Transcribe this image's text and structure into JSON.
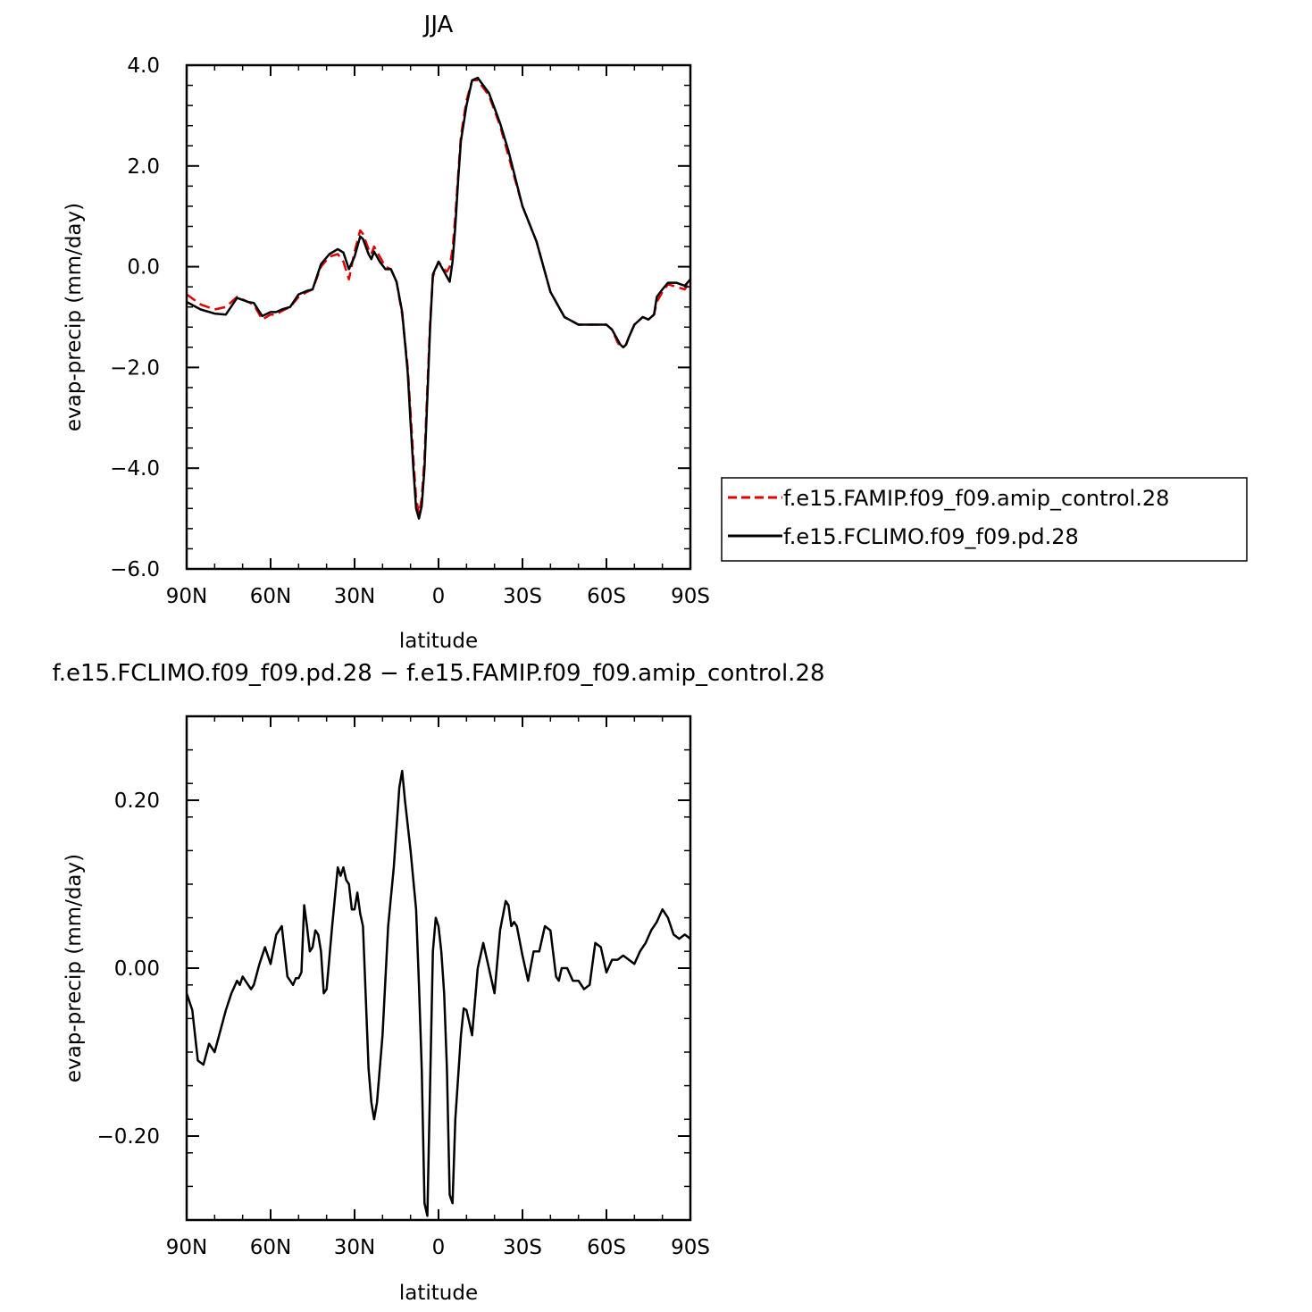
{
  "chart_data": [
    {
      "type": "line",
      "title": "JJA",
      "xlabel": "latitude",
      "ylabel": "evap-precip (mm/day)",
      "xlim": [
        -90,
        90
      ],
      "ylim": [
        -6,
        4
      ],
      "x_tick_values": [
        -90,
        -60,
        -30,
        0,
        30,
        60,
        90
      ],
      "x_tick_labels": [
        "90N",
        "60N",
        "30N",
        "0",
        "30S",
        "60S",
        "90S"
      ],
      "y_tick_values": [
        -6,
        -4,
        -2,
        0,
        2,
        4
      ],
      "y_tick_labels": [
        "−6.0",
        "−4.0",
        "−2.0",
        "0.0",
        "2.0",
        "4.0"
      ],
      "legend_placement": "right, outside plot",
      "series": [
        {
          "name": "f.e15.FAMIP.f09_f09.amip_control.28",
          "color": "#e00000",
          "dash": "dashed",
          "x": [
            -90,
            -85,
            -80,
            -76,
            -72,
            -68,
            -66,
            -63,
            -60,
            -58,
            -56,
            -53,
            -50,
            -47,
            -45,
            -42,
            -39,
            -36,
            -34,
            -32,
            -30,
            -28,
            -27,
            -26,
            -25,
            -24,
            -23,
            -21,
            -19,
            -17,
            -15,
            -13,
            -11,
            -10,
            -9,
            -8,
            -7,
            -6,
            -5,
            -4,
            -3,
            -2,
            0,
            2,
            3,
            4,
            5,
            6,
            7,
            8,
            10,
            12,
            14,
            16,
            18,
            20,
            22,
            25,
            30,
            35,
            40,
            45,
            50,
            55,
            60,
            62,
            64,
            65,
            66,
            67,
            68,
            70,
            73,
            75,
            77,
            78,
            80,
            82,
            85,
            88,
            90
          ],
          "y": [
            -0.55,
            -0.75,
            -0.85,
            -0.8,
            -0.6,
            -0.7,
            -0.75,
            -1.05,
            -0.95,
            -0.95,
            -0.88,
            -0.8,
            -0.6,
            -0.5,
            -0.45,
            0.0,
            0.2,
            0.25,
            0.1,
            -0.25,
            0.3,
            0.72,
            0.65,
            0.5,
            0.35,
            0.25,
            0.4,
            0.2,
            0.0,
            -0.05,
            -0.3,
            -0.95,
            -2.0,
            -2.9,
            -3.8,
            -4.6,
            -4.9,
            -4.6,
            -3.8,
            -2.4,
            -1.1,
            -0.2,
            0.1,
            -0.05,
            -0.1,
            0.0,
            0.35,
            1.0,
            1.8,
            2.6,
            3.3,
            3.7,
            3.7,
            3.55,
            3.4,
            3.1,
            2.8,
            2.2,
            1.2,
            0.5,
            -0.5,
            -1.0,
            -1.15,
            -1.15,
            -1.15,
            -1.25,
            -1.5,
            -1.6,
            -1.6,
            -1.55,
            -1.4,
            -1.15,
            -1.0,
            -1.05,
            -0.95,
            -0.7,
            -0.5,
            -0.35,
            -0.4,
            -0.45,
            -0.28
          ]
        },
        {
          "name": "f.e15.FCLIMO.f09_f09.pd.28",
          "color": "#000000",
          "dash": "solid",
          "x": [
            -90,
            -85,
            -80,
            -76,
            -72,
            -68,
            -66,
            -63,
            -60,
            -58,
            -56,
            -53,
            -50,
            -47,
            -45,
            -42,
            -39,
            -36,
            -34,
            -32,
            -30,
            -28,
            -27,
            -26,
            -25,
            -24,
            -23,
            -21,
            -19,
            -17,
            -15,
            -13,
            -11,
            -10,
            -9,
            -8,
            -7,
            -6,
            -5,
            -4,
            -3,
            -2,
            0,
            2,
            3,
            4,
            5,
            6,
            7,
            8,
            10,
            12,
            14,
            16,
            18,
            20,
            22,
            25,
            30,
            35,
            40,
            45,
            50,
            55,
            60,
            62,
            64,
            65,
            66,
            67,
            68,
            70,
            73,
            75,
            77,
            78,
            80,
            82,
            85,
            88,
            90
          ],
          "y": [
            -0.7,
            -0.85,
            -0.93,
            -0.95,
            -0.62,
            -0.7,
            -0.72,
            -0.98,
            -0.9,
            -0.9,
            -0.85,
            -0.8,
            -0.55,
            -0.48,
            -0.45,
            0.05,
            0.25,
            0.35,
            0.28,
            -0.05,
            0.2,
            0.6,
            0.55,
            0.4,
            0.25,
            0.15,
            0.3,
            0.1,
            -0.05,
            -0.05,
            -0.3,
            -0.9,
            -2.1,
            -3.1,
            -4.0,
            -4.8,
            -5.0,
            -4.75,
            -4.0,
            -2.6,
            -1.2,
            -0.15,
            0.1,
            -0.1,
            -0.2,
            -0.3,
            0.1,
            0.8,
            1.7,
            2.5,
            3.2,
            3.7,
            3.75,
            3.6,
            3.45,
            3.15,
            2.85,
            2.3,
            1.2,
            0.5,
            -0.5,
            -1.0,
            -1.15,
            -1.15,
            -1.15,
            -1.25,
            -1.45,
            -1.55,
            -1.6,
            -1.55,
            -1.4,
            -1.15,
            -1.0,
            -1.05,
            -0.95,
            -0.6,
            -0.45,
            -0.32,
            -0.32,
            -0.38,
            -0.25
          ]
        }
      ]
    },
    {
      "type": "line",
      "title": "f.e15.FCLIMO.f09_f09.pd.28 − f.e15.FAMIP.f09_f09.amip_control.28",
      "xlabel": "latitude",
      "ylabel": "evap-precip (mm/day)",
      "xlim": [
        -90,
        90
      ],
      "ylim": [
        -0.3,
        0.3
      ],
      "x_tick_values": [
        -90,
        -60,
        -30,
        0,
        30,
        60,
        90
      ],
      "x_tick_labels": [
        "90N",
        "60N",
        "30N",
        "0",
        "30S",
        "60S",
        "90S"
      ],
      "y_tick_values": [
        -0.2,
        0.0,
        0.2
      ],
      "y_tick_labels": [
        "−0.20",
        "0.00",
        "0.20"
      ],
      "series": [
        {
          "color": "#000000",
          "dash": "solid",
          "x": [
            -90,
            -88,
            -86,
            -84,
            -82,
            -80,
            -78,
            -76,
            -74,
            -72,
            -71,
            -70,
            -68,
            -67,
            -66,
            -64,
            -62,
            -60,
            -58,
            -56,
            -54,
            -52,
            -51,
            -50,
            -49,
            -48,
            -47,
            -46,
            -45,
            -44,
            -43,
            -42,
            -41,
            -40,
            -38,
            -36,
            -35,
            -34,
            -33,
            -32,
            -31,
            -30,
            -29,
            -28,
            -27,
            -25,
            -24,
            -23,
            -22,
            -20,
            -18,
            -16,
            -14,
            -13,
            -12,
            -10,
            -8,
            -7,
            -6,
            -5,
            -4,
            -2,
            -1,
            0,
            1,
            2,
            3,
            4,
            5,
            6,
            8,
            9,
            10,
            11,
            12,
            14,
            16,
            18,
            20,
            22,
            24,
            25,
            26,
            27,
            28,
            30,
            32,
            34,
            36,
            38,
            40,
            42,
            43,
            44,
            46,
            48,
            50,
            52,
            54,
            56,
            58,
            60,
            62,
            64,
            66,
            68,
            70,
            72,
            74,
            76,
            78,
            80,
            82,
            84,
            86,
            88,
            90
          ],
          "y": [
            -0.03,
            -0.05,
            -0.11,
            -0.115,
            -0.09,
            -0.1,
            -0.075,
            -0.05,
            -0.03,
            -0.015,
            -0.02,
            -0.01,
            -0.02,
            -0.025,
            -0.02,
            0.005,
            0.025,
            0.005,
            0.04,
            0.05,
            -0.01,
            -0.02,
            -0.012,
            -0.012,
            -0.005,
            0.075,
            0.05,
            0.02,
            0.025,
            0.045,
            0.04,
            0.02,
            -0.03,
            -0.025,
            0.05,
            0.12,
            0.11,
            0.12,
            0.105,
            0.1,
            0.07,
            0.07,
            0.09,
            0.065,
            0.05,
            -0.12,
            -0.16,
            -0.18,
            -0.16,
            -0.08,
            0.05,
            0.12,
            0.215,
            0.235,
            0.2,
            0.14,
            0.07,
            -0.02,
            -0.12,
            -0.28,
            -0.295,
            0.02,
            0.06,
            0.05,
            0.02,
            -0.03,
            -0.12,
            -0.27,
            -0.28,
            -0.18,
            -0.08,
            -0.048,
            -0.05,
            -0.065,
            -0.08,
            0.0,
            0.03,
            0.0,
            -0.03,
            0.045,
            0.08,
            0.075,
            0.05,
            0.055,
            0.05,
            0.015,
            -0.015,
            0.02,
            0.02,
            0.05,
            0.045,
            -0.01,
            -0.015,
            0.0,
            0.0,
            -0.015,
            -0.015,
            -0.025,
            -0.02,
            0.03,
            0.025,
            -0.005,
            0.01,
            0.01,
            0.015,
            0.01,
            0.005,
            0.02,
            0.03,
            0.045,
            0.055,
            0.07,
            0.06,
            0.04,
            0.035,
            0.04,
            0.035
          ]
        }
      ]
    }
  ]
}
